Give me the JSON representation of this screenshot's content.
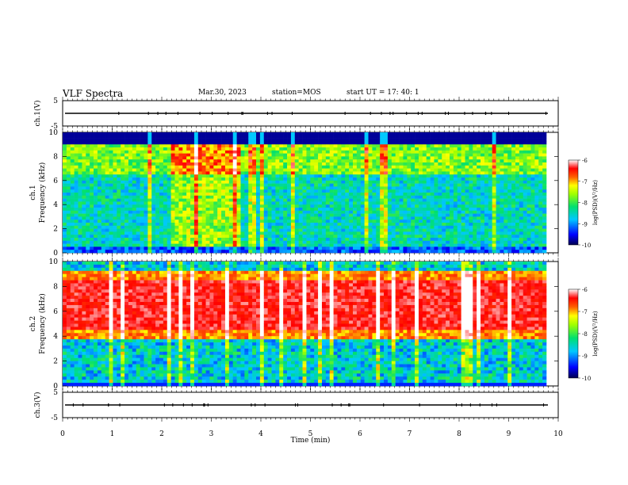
{
  "header": {
    "title": "VLF Spectra",
    "date": "Mar.30, 2023",
    "station": "station=MOS",
    "start": "start  UT  =   17: 40: 1"
  },
  "chart_data": [
    {
      "type": "line",
      "panel": "ch1-voltage",
      "ylabel": "ch.1(V)",
      "ylim": [
        -5,
        5
      ],
      "yticks": [
        "5",
        "-5"
      ],
      "trace_level": 0,
      "xlim": [
        0,
        10
      ]
    },
    {
      "type": "heatmap",
      "panel": "ch1-spectrogram",
      "ylabel": "Frequency (kHz)",
      "channel_label": "ch.1",
      "ylim": [
        0,
        10
      ],
      "yticks": [
        "0",
        "2",
        "4",
        "6",
        "8",
        "10"
      ],
      "xlim": [
        0,
        10
      ],
      "colorbar": {
        "label": "log(PSD)(V²/Hz)",
        "ticks": [
          "-6",
          "-7",
          "-8",
          "-9",
          "-10"
        ],
        "range": [
          -10,
          -6
        ]
      },
      "description_bands_khz": {
        "band_top_khz": 8.8,
        "high_power_range_min": [
          2.2,
          3.6
        ]
      }
    },
    {
      "type": "heatmap",
      "panel": "ch2-spectrogram",
      "ylabel": "Frequency (kHz)",
      "channel_label": "ch.2",
      "ylim": [
        0,
        10
      ],
      "yticks": [
        "0",
        "2",
        "4",
        "6",
        "8",
        "10"
      ],
      "xlim": [
        0,
        10
      ],
      "colorbar": {
        "label": "log(PSD)(V²/Hz)",
        "ticks": [
          "-6",
          "-7",
          "-8",
          "-9",
          "-10"
        ],
        "range": [
          -10,
          -6
        ]
      },
      "description_bands_khz": {
        "peak_range_khz": [
          4.5,
          8.5
        ]
      }
    },
    {
      "type": "line",
      "panel": "ch3-voltage",
      "ylabel": "ch.3(V)",
      "ylim": [
        -5,
        5
      ],
      "yticks": [
        "5",
        "-5"
      ],
      "trace_level": 0,
      "xlim": [
        0,
        10
      ],
      "xlabel": "Time  (min)",
      "xticks": [
        "0",
        "1",
        "2",
        "3",
        "4",
        "5",
        "6",
        "7",
        "8",
        "9",
        "10"
      ]
    }
  ]
}
